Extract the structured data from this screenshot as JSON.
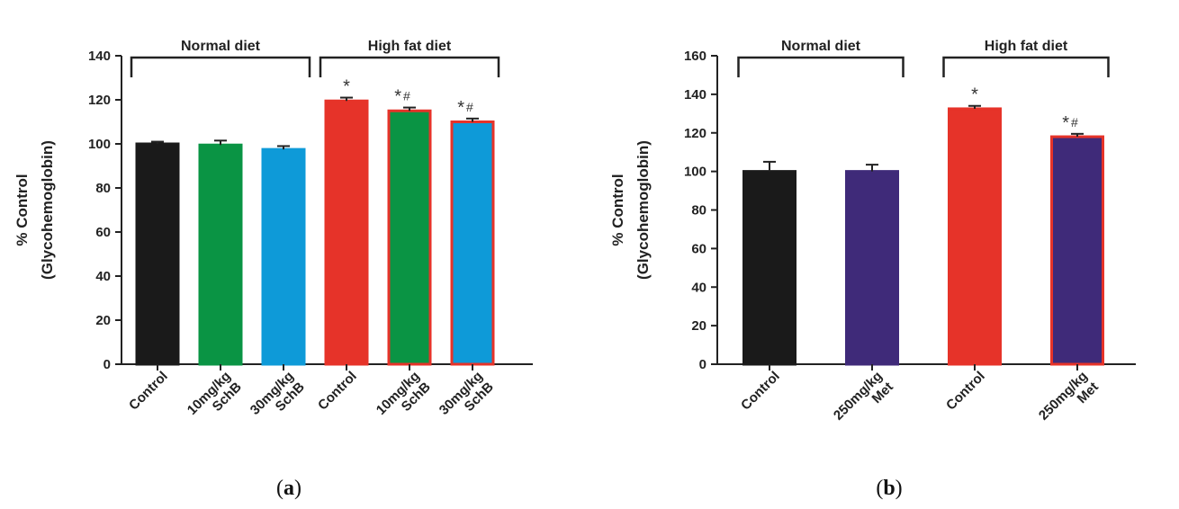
{
  "chart_data": [
    {
      "type": "bar",
      "panel_label": "a",
      "ylabel_line1": "% Control",
      "ylabel_line2": "(Glycohemoglobin)",
      "ylim": [
        0,
        140
      ],
      "yticks": [
        0,
        20,
        40,
        60,
        80,
        100,
        120,
        140
      ],
      "groups": [
        {
          "label": "Normal diet",
          "start": 0,
          "end": 2
        },
        {
          "label": "High fat diet",
          "start": 3,
          "end": 5
        }
      ],
      "bars": [
        {
          "label_lines": [
            "Control"
          ],
          "value": 100,
          "error": 1,
          "fill": "#1a1a1a",
          "stroke": "#1a1a1a",
          "annotation": ""
        },
        {
          "label_lines": [
            "10mg/kg",
            "SchB"
          ],
          "value": 99.5,
          "error": 2,
          "fill": "#0a9444",
          "stroke": "#0a9444",
          "annotation": ""
        },
        {
          "label_lines": [
            "30mg/kg",
            "SchB"
          ],
          "value": 97.5,
          "error": 1.5,
          "fill": "#0e9ad8",
          "stroke": "#0e9ad8",
          "annotation": ""
        },
        {
          "label_lines": [
            "Control"
          ],
          "value": 119.5,
          "error": 1.5,
          "fill": "#e63329",
          "stroke": "#e63329",
          "annotation": "*"
        },
        {
          "label_lines": [
            "10mg/kg",
            "SchB"
          ],
          "value": 115,
          "error": 1.5,
          "fill": "#0a9444",
          "stroke": "#e63329",
          "annotation": "*#"
        },
        {
          "label_lines": [
            "30mg/kg",
            "SchB"
          ],
          "value": 110,
          "error": 1.5,
          "fill": "#0e9ad8",
          "stroke": "#e63329",
          "annotation": "*#"
        }
      ]
    },
    {
      "type": "bar",
      "panel_label": "b",
      "ylabel_line1": "% Control",
      "ylabel_line2": "(Glycohemoglobin)",
      "ylim": [
        0,
        160
      ],
      "yticks": [
        0,
        20,
        40,
        60,
        80,
        100,
        120,
        140,
        160
      ],
      "groups": [
        {
          "label": "Normal diet",
          "start": 0,
          "end": 1
        },
        {
          "label": "High fat diet",
          "start": 2,
          "end": 3
        }
      ],
      "bars": [
        {
          "label_lines": [
            "Control"
          ],
          "value": 100,
          "error": 5,
          "fill": "#1a1a1a",
          "stroke": "#1a1a1a",
          "annotation": ""
        },
        {
          "label_lines": [
            "250mg/kg",
            "Met"
          ],
          "value": 100,
          "error": 3.5,
          "fill": "#3f2a79",
          "stroke": "#3f2a79",
          "annotation": ""
        },
        {
          "label_lines": [
            "Control"
          ],
          "value": 132.5,
          "error": 1.5,
          "fill": "#e63329",
          "stroke": "#e63329",
          "annotation": "*"
        },
        {
          "label_lines": [
            "250mg/kg",
            "Met"
          ],
          "value": 118,
          "error": 1.5,
          "fill": "#3f2a79",
          "stroke": "#e63329",
          "annotation": "*#"
        }
      ]
    }
  ]
}
